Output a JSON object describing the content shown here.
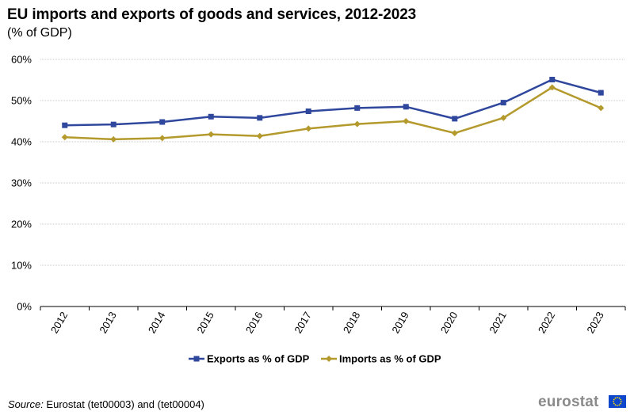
{
  "header": {
    "title": "EU imports and exports of goods and services, 2012-2023",
    "subtitle": "(% of GDP)"
  },
  "footer": {
    "source_label": "Source:",
    "source_text": " Eurostat (tet00003) and (tet00004)",
    "logo_text": "eurostat"
  },
  "colors": {
    "exports": "#2f479c",
    "imports": "#b49a2d",
    "grid": "#c8c8c8",
    "axis": "#000000"
  },
  "chart_data": {
    "type": "line",
    "title": "EU imports and exports of goods and services, 2012-2023",
    "subtitle": "(% of GDP)",
    "xlabel": "",
    "ylabel": "",
    "ylim": [
      0,
      60
    ],
    "yticks": [
      0,
      10,
      20,
      30,
      40,
      50,
      60
    ],
    "ytick_labels": [
      "0%",
      "10%",
      "20%",
      "30%",
      "40%",
      "50%",
      "60%"
    ],
    "grid": true,
    "legend_position": "bottom",
    "categories": [
      "2012",
      "2013",
      "2014",
      "2015",
      "2016",
      "2017",
      "2018",
      "2019",
      "2020",
      "2021",
      "2022",
      "2023"
    ],
    "series": [
      {
        "name": "Exports as % of GDP",
        "marker": "square",
        "color": "#2f479c",
        "values": [
          44.0,
          44.2,
          44.8,
          46.1,
          45.8,
          47.4,
          48.2,
          48.5,
          45.6,
          49.5,
          55.1,
          51.9
        ]
      },
      {
        "name": "Imports as % of GDP",
        "marker": "diamond",
        "color": "#b49a2d",
        "values": [
          41.1,
          40.6,
          40.9,
          41.8,
          41.4,
          43.2,
          44.3,
          45.0,
          42.1,
          45.8,
          53.2,
          48.2
        ]
      }
    ]
  }
}
